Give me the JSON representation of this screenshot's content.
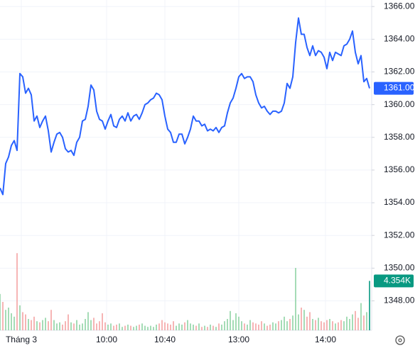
{
  "chart_data": {
    "type": "line",
    "xlim": [
      0,
      130
    ],
    "xticks": [
      {
        "value": 7.5,
        "label": "Tháng 3"
      },
      {
        "value": 37.5,
        "label": "10:00"
      },
      {
        "value": 58,
        "label": "10:40"
      },
      {
        "value": 84,
        "label": "13:00"
      },
      {
        "value": 114.5,
        "label": "14:00"
      }
    ],
    "ylim": [
      1346.2,
      1366.4
    ],
    "yticks": [
      {
        "value": 1348,
        "label": "1348.00"
      },
      {
        "value": 1350,
        "label": "1350.00"
      },
      {
        "value": 1352,
        "label": "1352.00"
      },
      {
        "value": 1354,
        "label": "1354.00"
      },
      {
        "value": 1356,
        "label": "1356.00"
      },
      {
        "value": 1358,
        "label": "1358.00"
      },
      {
        "value": 1360,
        "label": "1360.00"
      },
      {
        "value": 1362,
        "label": "1362.00"
      },
      {
        "value": 1364,
        "label": "1364.00"
      },
      {
        "value": 1366,
        "label": "1366.00"
      }
    ],
    "grid": true,
    "series": [
      {
        "color": "#2962ff",
        "last_label": "1361.00",
        "values": [
          1354.9,
          1354.5,
          1356.4,
          1356.8,
          1357.5,
          1357.8,
          1357.2,
          1361.9,
          1361.7,
          1360.7,
          1361.0,
          1360.6,
          1359.0,
          1359.3,
          1358.6,
          1359.0,
          1359.3,
          1358.4,
          1357.1,
          1357.7,
          1358.2,
          1358.3,
          1358.0,
          1357.3,
          1357.1,
          1357.2,
          1356.9,
          1357.7,
          1358.0,
          1359.0,
          1359.1,
          1359.9,
          1361.2,
          1360.9,
          1359.6,
          1359.1,
          1359.0,
          1358.5,
          1359.0,
          1359.4,
          1358.7,
          1358.6,
          1359.1,
          1359.3,
          1359.0,
          1359.5,
          1359.0,
          1359.3,
          1359.4,
          1359.1,
          1359.5,
          1360.0,
          1360.1,
          1360.3,
          1360.4,
          1360.7,
          1360.6,
          1360.3,
          1359.3,
          1358.5,
          1358.3,
          1357.7,
          1357.7,
          1358.2,
          1358.2,
          1357.6,
          1358.0,
          1358.5,
          1359.3,
          1359.0,
          1359.0,
          1358.7,
          1358.8,
          1358.4,
          1358.5,
          1358.4,
          1358.6,
          1358.3,
          1358.6,
          1358.7,
          1359.5,
          1360.1,
          1360.4,
          1361.0,
          1361.7,
          1361.9,
          1361.6,
          1361.7,
          1361.7,
          1361.4,
          1360.6,
          1360.1,
          1359.8,
          1359.9,
          1359.6,
          1359.4,
          1359.6,
          1359.6,
          1359.5,
          1359.6,
          1360.1,
          1361.3,
          1361.0,
          1361.7,
          1363.8,
          1365.3,
          1364.3,
          1364.3,
          1363.5,
          1363.0,
          1363.6,
          1363.0,
          1363.3,
          1363.2,
          1362.9,
          1362.2,
          1363.2,
          1362.7,
          1363.2,
          1363.1,
          1363.0,
          1363.6,
          1363.7,
          1364.0,
          1364.5,
          1363.2,
          1362.5,
          1363.0,
          1361.4,
          1361.6,
          1361.0
        ]
      }
    ],
    "volume": {
      "up_color": "#8fd3a4",
      "down_color": "#f4a3a3",
      "last_color": "#089981",
      "ylim": [
        0,
        7.5
      ],
      "last_label": "4.354K",
      "values": [
        3.2,
        2.5,
        1.8,
        2.0,
        1.5,
        1.2,
        6.8,
        2.2,
        1.6,
        1.4,
        1.0,
        0.9,
        1.2,
        0.8,
        0.7,
        0.9,
        1.1,
        0.8,
        1.8,
        0.9,
        0.6,
        0.7,
        0.5,
        0.8,
        1.4,
        0.7,
        0.6,
        0.9,
        0.5,
        0.6,
        1.0,
        1.6,
        0.9,
        1.1,
        0.6,
        0.8,
        1.5,
        0.7,
        0.5,
        0.6,
        0.4,
        0.5,
        0.6,
        0.3,
        0.4,
        0.5,
        0.4,
        0.3,
        0.4,
        0.5,
        0.6,
        0.4,
        0.3,
        0.4,
        0.3,
        0.5,
        0.6,
        0.9,
        0.7,
        0.6,
        0.5,
        0.8,
        0.4,
        0.6,
        0.5,
        0.7,
        0.9,
        0.6,
        0.5,
        0.4,
        0.6,
        0.3,
        0.4,
        0.3,
        0.5,
        0.4,
        0.3,
        0.6,
        0.5,
        0.8,
        1.0,
        1.7,
        0.9,
        1.5,
        1.2,
        0.8,
        0.6,
        0.5,
        0.9,
        0.7,
        0.6,
        0.5,
        0.8,
        0.6,
        0.4,
        0.5,
        0.7,
        0.6,
        0.8,
        0.9,
        1.2,
        0.8,
        1.0,
        1.3,
        5.5,
        1.4,
        2.0,
        1.8,
        1.2,
        1.6,
        1.0,
        0.9,
        1.1,
        0.8,
        0.7,
        0.9,
        1.0,
        0.8,
        0.6,
        0.7,
        0.9,
        0.8,
        1.2,
        1.0,
        1.4,
        1.7,
        1.1,
        2.4,
        1.3,
        1.6,
        4.354
      ]
    }
  }
}
